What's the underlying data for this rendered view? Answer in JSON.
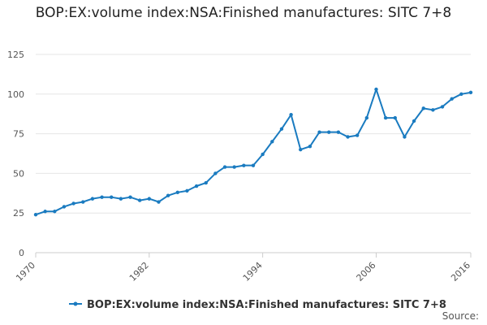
{
  "chart_data": {
    "type": "line",
    "title": "BOP:EX:volume index:NSA:Finished manufactures: SITC 7+8",
    "xlabel": "",
    "ylabel": "",
    "xlim": [
      1970,
      2016
    ],
    "ylim": [
      0,
      125
    ],
    "yticks": [
      0,
      25,
      50,
      75,
      100,
      125
    ],
    "xticks": [
      1970,
      1982,
      1994,
      2006,
      2016
    ],
    "grid": true,
    "legend_position": "bottom-center",
    "series": [
      {
        "name": "BOP:EX:volume index:NSA:Finished manufactures: SITC 7+8",
        "color": "#1a7bc0",
        "x": [
          1970,
          1971,
          1972,
          1973,
          1974,
          1975,
          1976,
          1977,
          1978,
          1979,
          1980,
          1981,
          1982,
          1983,
          1984,
          1985,
          1986,
          1987,
          1988,
          1989,
          1990,
          1991,
          1992,
          1993,
          1994,
          1995,
          1996,
          1997,
          1998,
          1999,
          2000,
          2001,
          2002,
          2003,
          2004,
          2005,
          2006,
          2007,
          2008,
          2009,
          2010,
          2011,
          2012,
          2013,
          2014,
          2015,
          2016
        ],
        "values": [
          24,
          26,
          26,
          29,
          31,
          32,
          34,
          35,
          35,
          34,
          35,
          33,
          34,
          32,
          36,
          38,
          39,
          42,
          44,
          50,
          54,
          54,
          55,
          55,
          62,
          70,
          78,
          87,
          65,
          67,
          76,
          76,
          76,
          73,
          74,
          85,
          103,
          85,
          85,
          73,
          83,
          91,
          90,
          92,
          97,
          100,
          101
        ]
      }
    ]
  },
  "source_label": "Source:"
}
